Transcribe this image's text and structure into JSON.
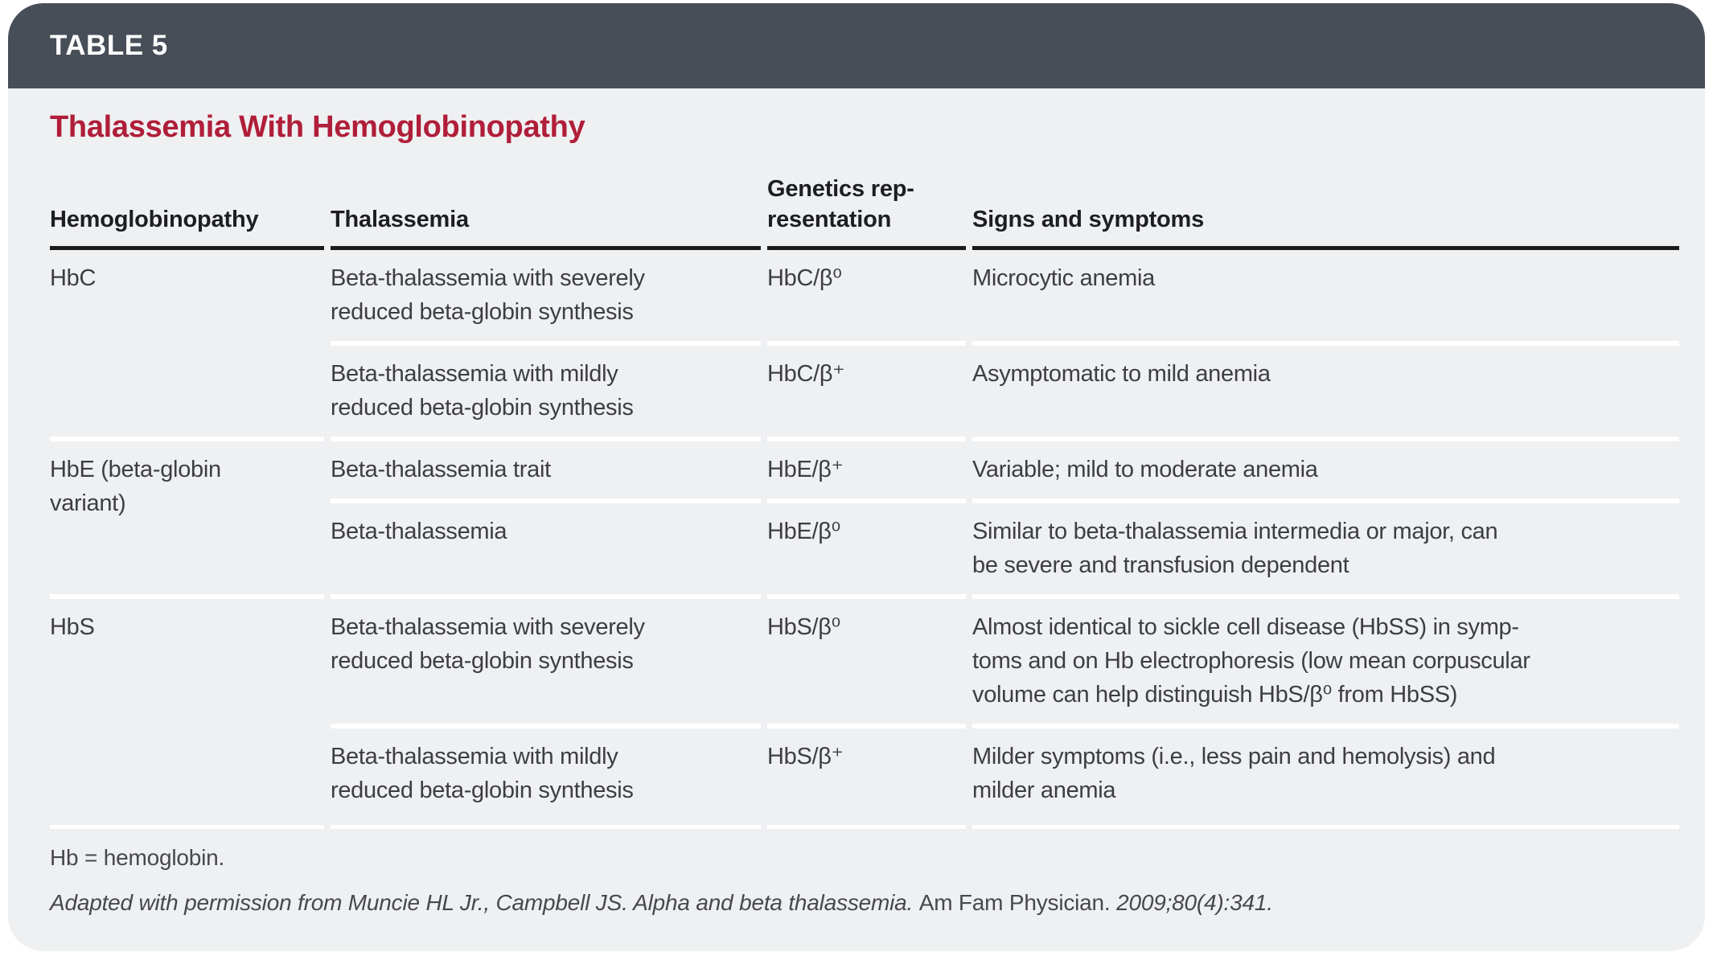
{
  "header": {
    "table_label": "TABLE 5"
  },
  "title": "Thalassemia With Hemoglobinopathy",
  "table": {
    "columns": [
      "Hemoglobinopathy",
      "Thalassemia",
      "Genetics rep-\nresentation",
      "Signs and symptoms"
    ],
    "groups": [
      {
        "hemoglobinopathy": "HbC",
        "rows": [
          {
            "thalassemia": "Beta-thalassemia with severely\nreduced beta-globin synthesis",
            "genetics": "HbC/β⁰",
            "signs": "Microcytic anemia"
          },
          {
            "thalassemia": "Beta-thalassemia with mildly\nreduced beta-globin synthesis",
            "genetics": "HbC/β⁺",
            "signs": "Asymptomatic to mild anemia"
          }
        ]
      },
      {
        "hemoglobinopathy": "HbE (beta-globin\nvariant)",
        "rows": [
          {
            "thalassemia": "Beta-thalassemia trait",
            "genetics": "HbE/β⁺",
            "signs": "Variable; mild to moderate anemia"
          },
          {
            "thalassemia": "Beta-thalassemia",
            "genetics": "HbE/β⁰",
            "signs": "Similar to beta-thalassemia intermedia or major, can\nbe severe and transfusion dependent"
          }
        ]
      },
      {
        "hemoglobinopathy": "HbS",
        "rows": [
          {
            "thalassemia": "Beta-thalassemia with severely\nreduced beta-globin synthesis",
            "genetics": "HbS/β⁰",
            "signs": "Almost identical to sickle cell disease (HbSS) in symp-\ntoms and on Hb electrophoresis (low mean corpuscular\nvolume can help distinguish HbS/β⁰ from HbSS)"
          },
          {
            "thalassemia": "Beta-thalassemia with mildly\nreduced beta-globin synthesis",
            "genetics": "HbS/β⁺",
            "signs": "Milder symptoms (i.e., less pain and hemolysis) and\nmilder anemia"
          }
        ]
      }
    ]
  },
  "footnotes": {
    "abbreviation": "Hb = hemoglobin.",
    "credit_italic_lead": "Adapted with permission from Muncie HL Jr., Campbell JS. Alpha and beta thalassemia. ",
    "credit_journal": "Am Fam Physician. ",
    "credit_citation": "2009;80(4):341."
  },
  "colors": {
    "header_bar": "#474e58",
    "title_red": "#b01e39",
    "card_background": "#eff0f2",
    "header_rule": "#1a1a1a",
    "row_divider": "#ffffff",
    "body_text": "#3d3e42"
  }
}
